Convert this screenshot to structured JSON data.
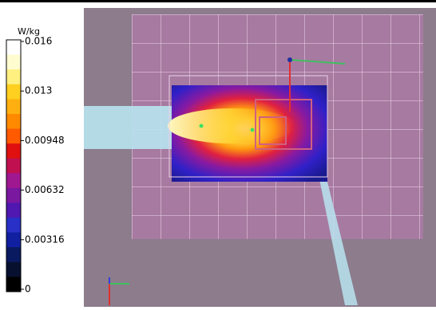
{
  "colorbar": {
    "unit": "W/kg",
    "ticks": [
      0.016,
      0.013,
      0.00948,
      0.00632,
      0.00316,
      0
    ]
  }
}
